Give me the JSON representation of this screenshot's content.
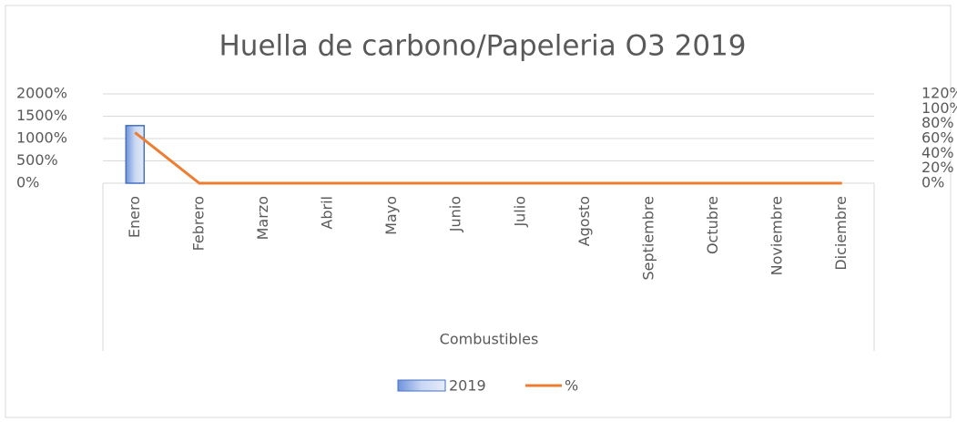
{
  "chart_data": {
    "type": "bar_line",
    "title": "Huella de carbono/Papeleria O3 2019",
    "x_label": "Combustibles",
    "categories": [
      "Enero",
      "Febrero",
      "Marzo",
      "Abril",
      "Mayo",
      "Junio",
      "Julio",
      "Agosto",
      "Septiembre",
      "Octubre",
      "Noviembre",
      "Diciembre"
    ],
    "series": [
      {
        "name": "2019",
        "type": "bar",
        "color": "#4472c4",
        "values": [
          1290,
          0,
          0,
          0,
          0,
          0,
          0,
          0,
          0,
          0,
          0,
          0
        ]
      },
      {
        "name": "%",
        "type": "line",
        "axis": "y2",
        "color": "#ed7d31",
        "values": [
          68,
          0,
          0,
          0,
          0,
          0,
          0,
          0,
          0,
          0,
          0,
          0
        ]
      }
    ],
    "ylim": [
      0,
      2000
    ],
    "yticks": [
      {
        "value": 0,
        "label": "0%"
      },
      {
        "value": 500,
        "label": "500%"
      },
      {
        "value": 1000,
        "label": "1000%"
      },
      {
        "value": 1500,
        "label": "1500%"
      },
      {
        "value": 2000,
        "label": "2000%"
      }
    ],
    "y2lim": [
      0,
      120
    ],
    "y2ticks": [
      {
        "value": 0,
        "label": "0%"
      },
      {
        "value": 20,
        "label": "20%"
      },
      {
        "value": 40,
        "label": "40%"
      },
      {
        "value": 60,
        "label": "60%"
      },
      {
        "value": 80,
        "label": "80%"
      },
      {
        "value": 100,
        "label": "100%"
      },
      {
        "value": 120,
        "label": "120%"
      }
    ],
    "grid": true,
    "legend": "bottom"
  }
}
